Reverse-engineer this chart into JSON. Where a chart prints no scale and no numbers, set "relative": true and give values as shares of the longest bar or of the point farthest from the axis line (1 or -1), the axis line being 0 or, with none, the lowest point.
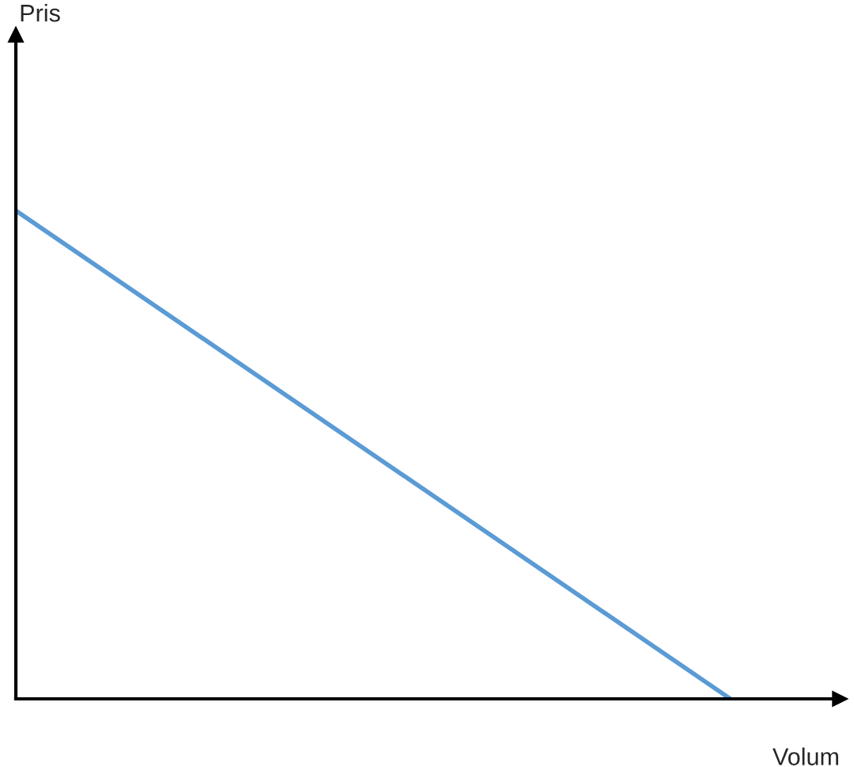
{
  "chart_data": {
    "type": "line",
    "relative": true,
    "xlabel": "Volum",
    "annotations": [
      "Pris"
    ],
    "categories": [
      null,
      null
    ],
    "series": [
      {
        "color": "#5b9bd5",
        "values": [
          1,
          0
        ]
      }
    ],
    "marker": "none",
    "line_style": "solid"
  }
}
